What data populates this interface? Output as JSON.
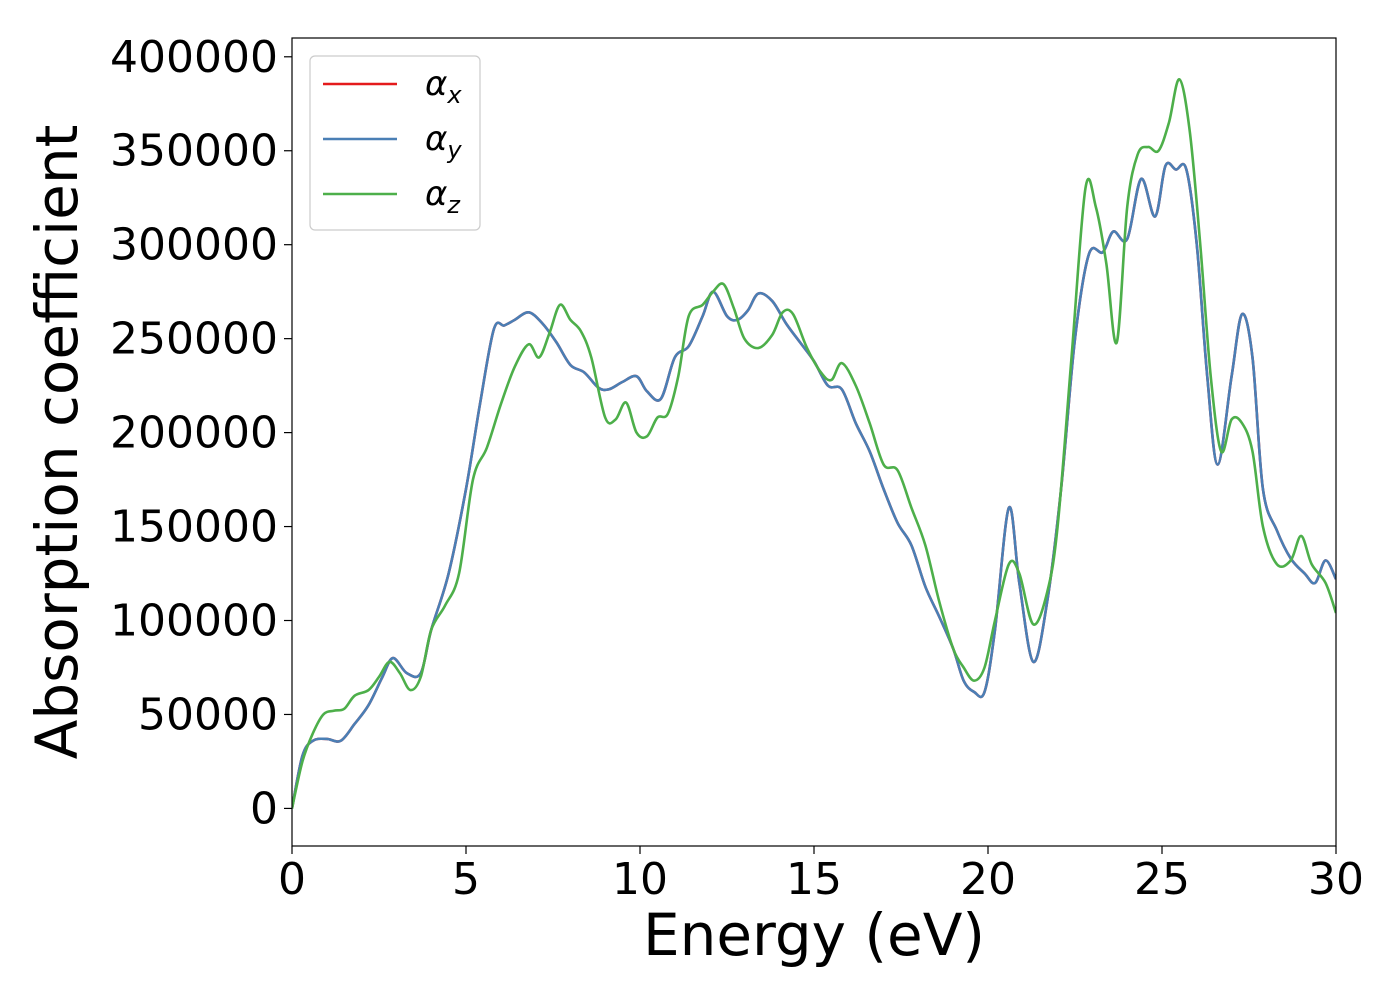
{
  "chart_data": {
    "type": "line",
    "title": "",
    "xlabel": "Energy (eV)",
    "ylabel": "Absorption coefficient",
    "xlim": [
      0,
      30
    ],
    "ylim": [
      -20000,
      410000
    ],
    "xticks": [
      0,
      5,
      10,
      15,
      20,
      25,
      30
    ],
    "yticks": [
      0,
      50000,
      100000,
      150000,
      200000,
      250000,
      300000,
      350000,
      400000
    ],
    "grid": false,
    "legend": {
      "placement": "top-left"
    },
    "series": [
      {
        "name": "α_x",
        "label_main": "α",
        "label_sub": "x",
        "color": "#e41a1c",
        "x": [
          0,
          0.3,
          0.6,
          1.0,
          1.4,
          1.8,
          2.2,
          2.6,
          2.9,
          3.3,
          3.7,
          4.0,
          4.5,
          5.0,
          5.4,
          5.8,
          6.1,
          6.4,
          6.8,
          7.2,
          7.6,
          8.0,
          8.4,
          8.8,
          9.1,
          9.5,
          9.9,
          10.2,
          10.6,
          11.0,
          11.4,
          11.8,
          12.1,
          12.5,
          12.8,
          13.1,
          13.4,
          13.8,
          14.2,
          14.6,
          15.0,
          15.4,
          15.8,
          16.2,
          16.6,
          17.0,
          17.4,
          17.8,
          18.2,
          18.6,
          19.0,
          19.3,
          19.6,
          19.9,
          20.2,
          20.6,
          20.9,
          21.3,
          21.7,
          22.1,
          22.5,
          22.9,
          23.3,
          23.6,
          24.0,
          24.4,
          24.8,
          25.1,
          25.4,
          25.7,
          26.0,
          26.3,
          26.6,
          27.0,
          27.3,
          27.6,
          27.9,
          28.3,
          28.7,
          29.1,
          29.4,
          29.7,
          30.0
        ],
        "y": [
          0,
          28000,
          36000,
          37000,
          36000,
          45000,
          55000,
          70000,
          80000,
          72000,
          72000,
          95000,
          125000,
          170000,
          215000,
          255000,
          257000,
          260000,
          264000,
          258000,
          248000,
          236000,
          232000,
          224000,
          223000,
          227000,
          230000,
          222000,
          218000,
          240000,
          246000,
          262000,
          275000,
          262000,
          260000,
          265000,
          274000,
          270000,
          258000,
          248000,
          238000,
          225000,
          223000,
          205000,
          190000,
          170000,
          152000,
          140000,
          118000,
          102000,
          85000,
          68000,
          62000,
          62000,
          95000,
          160000,
          120000,
          78000,
          110000,
          170000,
          250000,
          295000,
          296000,
          307000,
          303000,
          335000,
          315000,
          342000,
          340000,
          340000,
          300000,
          230000,
          183000,
          230000,
          263000,
          240000,
          170000,
          148000,
          133000,
          125000,
          120000,
          132000,
          122000
        ]
      },
      {
        "name": "α_y",
        "label_main": "α",
        "label_sub": "y",
        "color": "#4a7fb5",
        "x": [
          0,
          0.3,
          0.6,
          1.0,
          1.4,
          1.8,
          2.2,
          2.6,
          2.9,
          3.3,
          3.7,
          4.0,
          4.5,
          5.0,
          5.4,
          5.8,
          6.1,
          6.4,
          6.8,
          7.2,
          7.6,
          8.0,
          8.4,
          8.8,
          9.1,
          9.5,
          9.9,
          10.2,
          10.6,
          11.0,
          11.4,
          11.8,
          12.1,
          12.5,
          12.8,
          13.1,
          13.4,
          13.8,
          14.2,
          14.6,
          15.0,
          15.4,
          15.8,
          16.2,
          16.6,
          17.0,
          17.4,
          17.8,
          18.2,
          18.6,
          19.0,
          19.3,
          19.6,
          19.9,
          20.2,
          20.6,
          20.9,
          21.3,
          21.7,
          22.1,
          22.5,
          22.9,
          23.3,
          23.6,
          24.0,
          24.4,
          24.8,
          25.1,
          25.4,
          25.7,
          26.0,
          26.3,
          26.6,
          27.0,
          27.3,
          27.6,
          27.9,
          28.3,
          28.7,
          29.1,
          29.4,
          29.7,
          30.0
        ],
        "y": [
          0,
          28000,
          36000,
          37000,
          36000,
          45000,
          55000,
          70000,
          80000,
          72000,
          72000,
          95000,
          125000,
          170000,
          215000,
          255000,
          257000,
          260000,
          264000,
          258000,
          248000,
          236000,
          232000,
          224000,
          223000,
          227000,
          230000,
          222000,
          218000,
          240000,
          246000,
          262000,
          275000,
          262000,
          260000,
          265000,
          274000,
          270000,
          258000,
          248000,
          238000,
          225000,
          223000,
          205000,
          190000,
          170000,
          152000,
          140000,
          118000,
          102000,
          85000,
          68000,
          62000,
          62000,
          95000,
          160000,
          120000,
          78000,
          110000,
          170000,
          250000,
          295000,
          296000,
          307000,
          303000,
          335000,
          315000,
          342000,
          340000,
          340000,
          300000,
          230000,
          183000,
          230000,
          263000,
          240000,
          170000,
          148000,
          133000,
          125000,
          120000,
          132000,
          122000
        ]
      },
      {
        "name": "α_z",
        "label_main": "α",
        "label_sub": "z",
        "color": "#4daf4a",
        "x": [
          0,
          0.3,
          0.6,
          0.9,
          1.2,
          1.5,
          1.8,
          2.2,
          2.5,
          2.8,
          3.1,
          3.4,
          3.7,
          4.0,
          4.4,
          4.8,
          5.2,
          5.6,
          6.0,
          6.4,
          6.8,
          7.1,
          7.4,
          7.7,
          8.0,
          8.3,
          8.6,
          9.0,
          9.3,
          9.6,
          9.9,
          10.2,
          10.5,
          10.8,
          11.1,
          11.4,
          11.8,
          12.1,
          12.4,
          12.7,
          13.0,
          13.4,
          13.8,
          14.1,
          14.4,
          14.8,
          15.2,
          15.5,
          15.8,
          16.2,
          16.6,
          17.0,
          17.4,
          17.8,
          18.2,
          18.6,
          19.0,
          19.3,
          19.6,
          19.9,
          20.2,
          20.6,
          20.9,
          21.3,
          21.7,
          22.0,
          22.4,
          22.8,
          23.1,
          23.4,
          23.7,
          24.0,
          24.3,
          24.6,
          24.9,
          25.2,
          25.5,
          25.8,
          26.1,
          26.4,
          26.7,
          27.0,
          27.3,
          27.6,
          27.9,
          28.3,
          28.7,
          29.0,
          29.3,
          29.7,
          30.0
        ],
        "y": [
          0,
          25000,
          40000,
          50000,
          52000,
          53000,
          60000,
          63000,
          70000,
          78000,
          72000,
          63000,
          70000,
          95000,
          108000,
          125000,
          175000,
          192000,
          215000,
          235000,
          247000,
          240000,
          253000,
          268000,
          260000,
          254000,
          240000,
          208000,
          207000,
          216000,
          200000,
          198000,
          208000,
          210000,
          230000,
          262000,
          268000,
          275000,
          279000,
          266000,
          250000,
          245000,
          252000,
          264000,
          263000,
          245000,
          232000,
          228000,
          237000,
          225000,
          205000,
          183000,
          180000,
          160000,
          140000,
          110000,
          85000,
          75000,
          68000,
          75000,
          100000,
          130000,
          125000,
          98000,
          115000,
          150000,
          240000,
          330000,
          320000,
          290000,
          248000,
          320000,
          348000,
          352000,
          350000,
          365000,
          388000,
          360000,
          300000,
          230000,
          190000,
          207000,
          205000,
          190000,
          150000,
          130000,
          132000,
          145000,
          130000,
          120000,
          104000
        ]
      }
    ]
  }
}
